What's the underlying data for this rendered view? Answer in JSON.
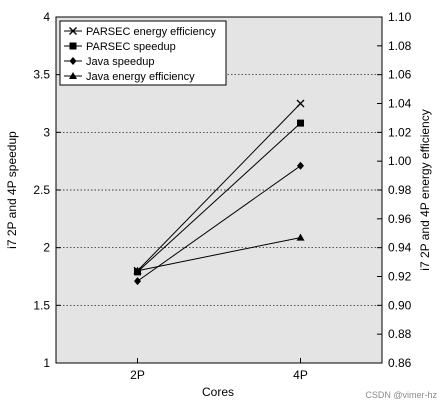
{
  "chart_data": {
    "type": "line",
    "categories": [
      "2P",
      "4P"
    ],
    "xlabel": "Cores",
    "ylabel": "i7 2P and 4P speedup",
    "y2label": "i7 2P and 4P energy efficiency",
    "ylim": [
      1,
      4
    ],
    "yticks": [
      "1",
      "1.5",
      "2",
      "2.5",
      "3",
      "3.5",
      "4"
    ],
    "y2lim": [
      0.86,
      1.1
    ],
    "y2ticks": [
      "0.86",
      "0.88",
      "0.90",
      "0.92",
      "0.94",
      "0.96",
      "0.98",
      "1.00",
      "1.02",
      "1.04",
      "1.06",
      "1.08",
      "1.10"
    ],
    "grid": true,
    "legend_position": "top-left",
    "background_color": "#e4e4e4",
    "series": [
      {
        "name": "PARSEC energy efficiency",
        "marker": "x",
        "axis": "right",
        "values": [
          0.924,
          1.04
        ]
      },
      {
        "name": "PARSEC speedup",
        "marker": "square",
        "axis": "left",
        "values": [
          1.79,
          3.08
        ]
      },
      {
        "name": "Java speedup",
        "marker": "diamond",
        "axis": "left",
        "values": [
          1.71,
          2.71
        ]
      },
      {
        "name": "Java energy efficiency",
        "marker": "triangle",
        "axis": "right",
        "values": [
          0.924,
          0.947
        ]
      }
    ]
  },
  "watermark": "CSDN @vimer-hz"
}
